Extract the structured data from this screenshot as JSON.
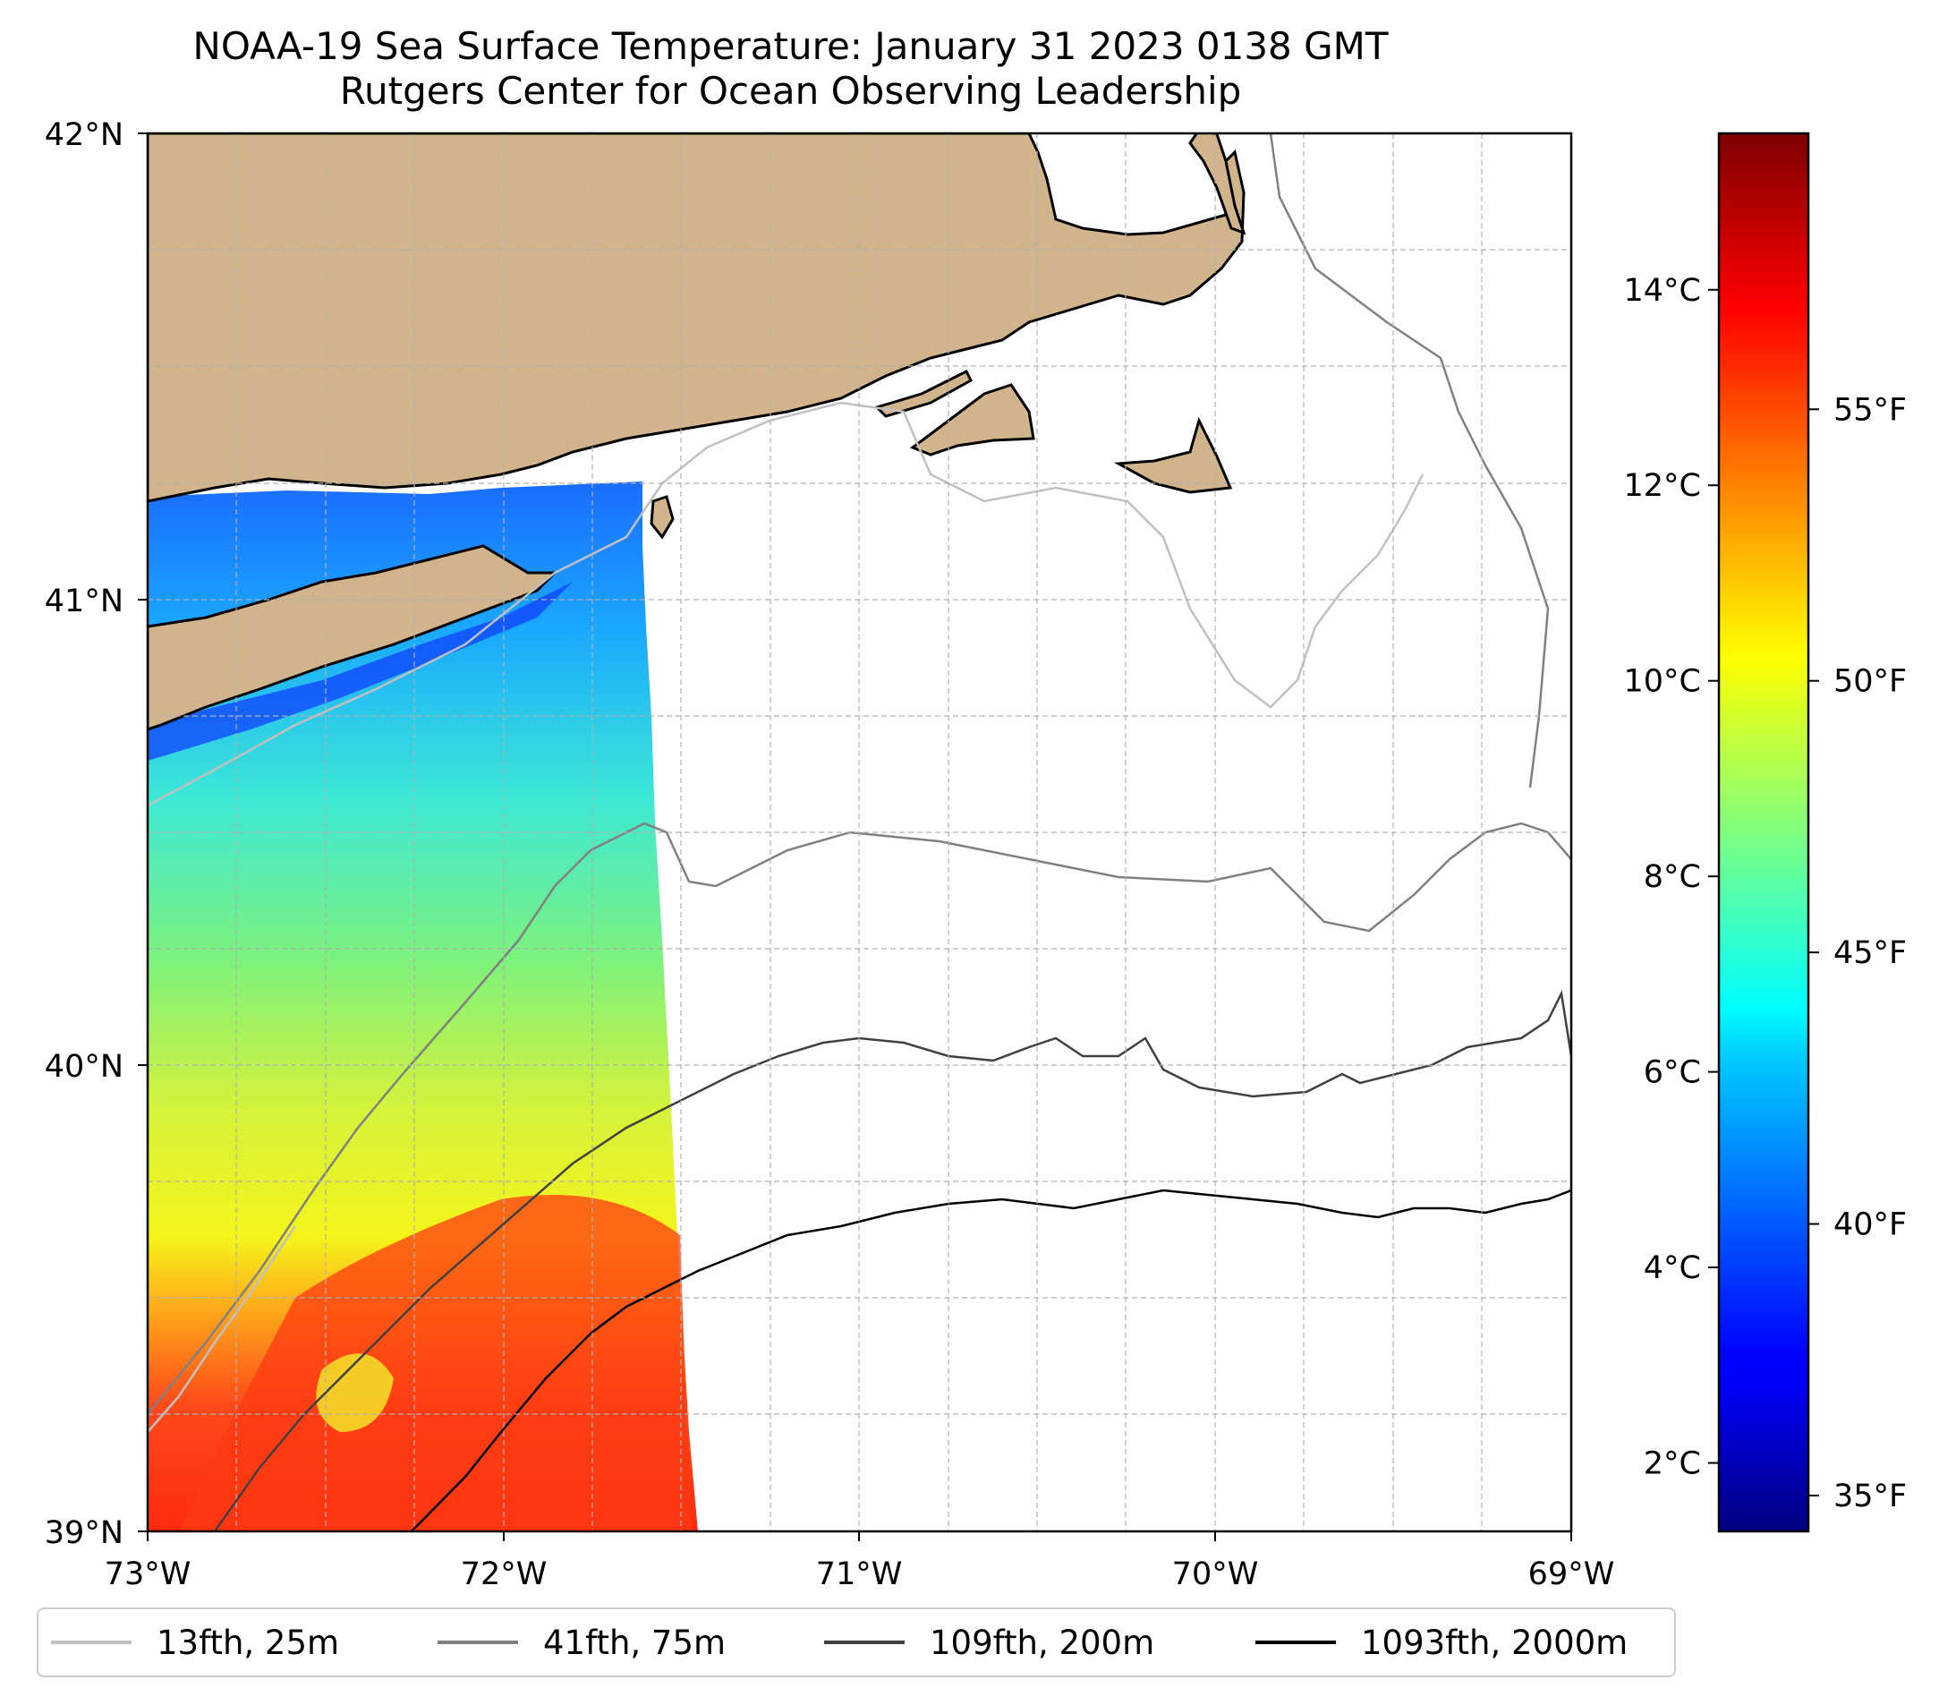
{
  "title": {
    "line1": "NOAA-19 Sea Surface Temperature: January 31 2023 0138 GMT",
    "line2": "Rutgers Center for Ocean Observing Leadership"
  },
  "map": {
    "type": "sea-surface-temperature-map",
    "lon_range": [
      -73,
      -69
    ],
    "lat_range": [
      39,
      42
    ],
    "x_ticks": [
      "73°W",
      "72°W",
      "71°W",
      "70°W",
      "69°W"
    ],
    "y_ticks": [
      "39°N",
      "40°N",
      "41°N",
      "42°N"
    ],
    "grid": true,
    "land_color": "#d2b48c",
    "colormap": "jet"
  },
  "colorbar": {
    "celsius_ticks": [
      "2°C",
      "4°C",
      "6°C",
      "8°C",
      "10°C",
      "12°C",
      "14°C"
    ],
    "celsius_values": [
      2,
      4,
      6,
      8,
      10,
      12,
      14
    ],
    "fahrenheit_ticks": [
      "35°F",
      "40°F",
      "45°F",
      "50°F",
      "55°F"
    ],
    "fahrenheit_values": [
      35,
      40,
      45,
      50,
      55
    ],
    "range_c": [
      1.3,
      15.6
    ]
  },
  "legend": [
    {
      "label": "13fth, 25m",
      "color": "#c0c0c0"
    },
    {
      "label": "41fth, 75m",
      "color": "#808080"
    },
    {
      "label": "109fth, 200m",
      "color": "#404040"
    },
    {
      "label": "1093fth, 2000m",
      "color": "#000000"
    }
  ]
}
